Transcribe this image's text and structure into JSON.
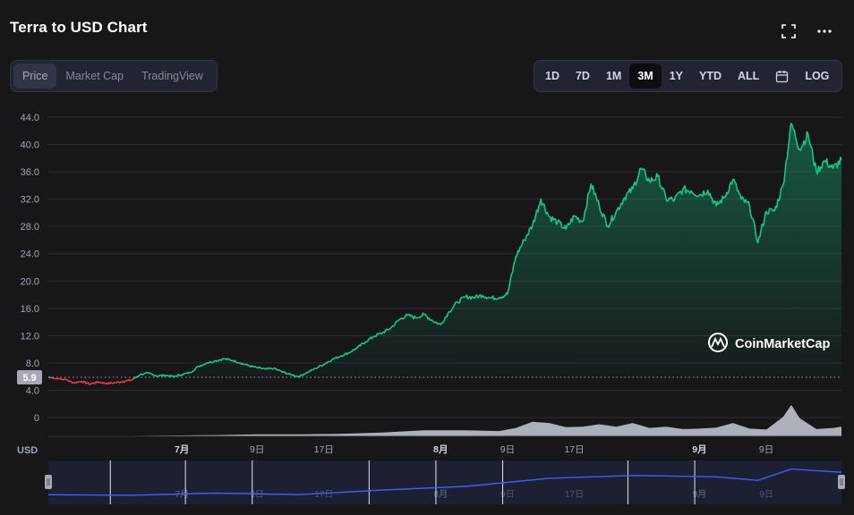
{
  "header": {
    "title": "Terra to USD Chart",
    "icons": [
      "fullscreen-icon",
      "more-icon"
    ]
  },
  "tabs_left": [
    {
      "label": "Price",
      "active": true
    },
    {
      "label": "Market Cap",
      "active": false
    },
    {
      "label": "TradingView",
      "active": false
    }
  ],
  "tabs_right": [
    {
      "label": "1D",
      "active": false
    },
    {
      "label": "7D",
      "active": false
    },
    {
      "label": "1M",
      "active": false
    },
    {
      "label": "3M",
      "active": true
    },
    {
      "label": "1Y",
      "active": false
    },
    {
      "label": "YTD",
      "active": false
    },
    {
      "label": "ALL",
      "active": false
    },
    {
      "label": "",
      "icon": "calendar-icon",
      "active": false
    },
    {
      "label": "LOG",
      "active": false
    }
  ],
  "watermark": "CoinMarketCap",
  "colors": {
    "up": "#16c784",
    "down": "#ea3943",
    "background": "#17171a",
    "navigator_line": "#3861fb",
    "volume": "#c8cbd6"
  },
  "chart_data": {
    "type": "line",
    "y_ticks": [
      "44.0",
      "40.0",
      "36.0",
      "32.0",
      "28.0",
      "24.0",
      "20.0",
      "16.0",
      "12.0",
      "8.0",
      "4.0",
      "0"
    ],
    "ylim": [
      0,
      44
    ],
    "reference_value": 5.9,
    "reference_label": "5.9",
    "currency_label": "USD",
    "x_ticks": [
      {
        "label": "7月",
        "bold": true,
        "day": 16
      },
      {
        "label": "9日",
        "bold": false,
        "day": 25
      },
      {
        "label": "17日",
        "bold": false,
        "day": 33
      },
      {
        "label": "8月",
        "bold": true,
        "day": 47
      },
      {
        "label": "9日",
        "bold": false,
        "day": 55
      },
      {
        "label": "17日",
        "bold": false,
        "day": 63
      },
      {
        "label": "9月",
        "bold": true,
        "day": 78
      },
      {
        "label": "9日",
        "bold": false,
        "day": 86
      }
    ],
    "x_range_days": [
      0,
      95
    ],
    "price_series": [
      [
        0,
        5.9
      ],
      [
        2,
        5.6
      ],
      [
        3,
        5.1
      ],
      [
        4,
        5.3
      ],
      [
        5,
        4.9
      ],
      [
        6,
        5.2
      ],
      [
        7,
        5.0
      ],
      [
        8,
        5.1
      ],
      [
        9,
        5.3
      ],
      [
        10,
        5.5
      ],
      [
        11,
        6.3
      ],
      [
        12,
        6.5
      ],
      [
        13,
        6.1
      ],
      [
        14,
        6.2
      ],
      [
        15,
        6.0
      ],
      [
        16,
        6.3
      ],
      [
        17,
        6.6
      ],
      [
        18,
        7.5
      ],
      [
        19,
        8.0
      ],
      [
        20,
        8.3
      ],
      [
        21,
        8.6
      ],
      [
        22,
        8.4
      ],
      [
        23,
        8.0
      ],
      [
        24,
        7.6
      ],
      [
        25,
        7.3
      ],
      [
        26,
        7.1
      ],
      [
        27,
        7.2
      ],
      [
        28,
        6.7
      ],
      [
        29,
        6.3
      ],
      [
        30,
        6.0
      ],
      [
        31,
        6.6
      ],
      [
        32,
        7.2
      ],
      [
        33,
        7.8
      ],
      [
        34,
        8.5
      ],
      [
        35,
        9.0
      ],
      [
        36,
        9.5
      ],
      [
        37,
        10.2
      ],
      [
        38,
        11.1
      ],
      [
        39,
        11.9
      ],
      [
        40,
        12.4
      ],
      [
        41,
        13.1
      ],
      [
        42,
        14.3
      ],
      [
        43,
        15.0
      ],
      [
        44,
        14.6
      ],
      [
        45,
        15.1
      ],
      [
        46,
        14.2
      ],
      [
        47,
        13.6
      ],
      [
        48,
        15.5
      ],
      [
        49,
        16.9
      ],
      [
        50,
        17.7
      ],
      [
        51,
        17.6
      ],
      [
        52,
        17.9
      ],
      [
        53,
        17.5
      ],
      [
        54,
        17.6
      ],
      [
        55,
        18.1
      ],
      [
        56,
        23.6
      ],
      [
        57,
        26.0
      ],
      [
        58,
        28.2
      ],
      [
        59,
        32.0
      ],
      [
        60,
        29.4
      ],
      [
        61,
        28.6
      ],
      [
        62,
        27.6
      ],
      [
        63,
        29.5
      ],
      [
        64,
        28.7
      ],
      [
        65,
        34.2
      ],
      [
        66,
        31.0
      ],
      [
        67,
        28.1
      ],
      [
        68,
        30.1
      ],
      [
        69,
        32.2
      ],
      [
        70,
        33.5
      ],
      [
        71,
        36.5
      ],
      [
        72,
        34.6
      ],
      [
        73,
        35.3
      ],
      [
        74,
        32.0
      ],
      [
        75,
        31.9
      ],
      [
        76,
        33.4
      ],
      [
        77,
        33.2
      ],
      [
        78,
        32.6
      ],
      [
        79,
        33.3
      ],
      [
        80,
        31.0
      ],
      [
        81,
        32.3
      ],
      [
        82,
        34.9
      ],
      [
        83,
        32.0
      ],
      [
        84,
        31.0
      ],
      [
        85,
        25.6
      ],
      [
        86,
        30.2
      ],
      [
        87,
        30.3
      ],
      [
        88,
        34.0
      ],
      [
        89,
        43.1
      ],
      [
        90,
        39.3
      ],
      [
        91,
        41.5
      ],
      [
        92,
        36.0
      ],
      [
        93,
        37.6
      ],
      [
        94,
        36.5
      ],
      [
        95,
        37.7
      ]
    ],
    "volume_series": [
      [
        0,
        0.2
      ],
      [
        10,
        0.2
      ],
      [
        20,
        0.5
      ],
      [
        25,
        0.8
      ],
      [
        30,
        0.8
      ],
      [
        35,
        1.0
      ],
      [
        40,
        1.6
      ],
      [
        45,
        2.5
      ],
      [
        50,
        2.5
      ],
      [
        54,
        2.2
      ],
      [
        56,
        3.5
      ],
      [
        58,
        6.0
      ],
      [
        60,
        5.5
      ],
      [
        62,
        3.8
      ],
      [
        64,
        4.0
      ],
      [
        66,
        5.0
      ],
      [
        68,
        4.0
      ],
      [
        70,
        5.5
      ],
      [
        72,
        3.5
      ],
      [
        74,
        4.0
      ],
      [
        76,
        3.0
      ],
      [
        78,
        3.2
      ],
      [
        80,
        3.6
      ],
      [
        82,
        5.5
      ],
      [
        84,
        3.2
      ],
      [
        86,
        2.8
      ],
      [
        88,
        8.0
      ],
      [
        89,
        13.0
      ],
      [
        90,
        7.5
      ],
      [
        92,
        3.0
      ],
      [
        94,
        3.5
      ],
      [
        95,
        4.0
      ]
    ],
    "navigator_series": [
      [
        0,
        5.9
      ],
      [
        10,
        5.2
      ],
      [
        20,
        8.2
      ],
      [
        30,
        6.0
      ],
      [
        40,
        12.4
      ],
      [
        50,
        17.6
      ],
      [
        60,
        29.0
      ],
      [
        70,
        33.0
      ],
      [
        80,
        31.0
      ],
      [
        85,
        26.0
      ],
      [
        89,
        42.0
      ],
      [
        95,
        37.5
      ]
    ]
  }
}
